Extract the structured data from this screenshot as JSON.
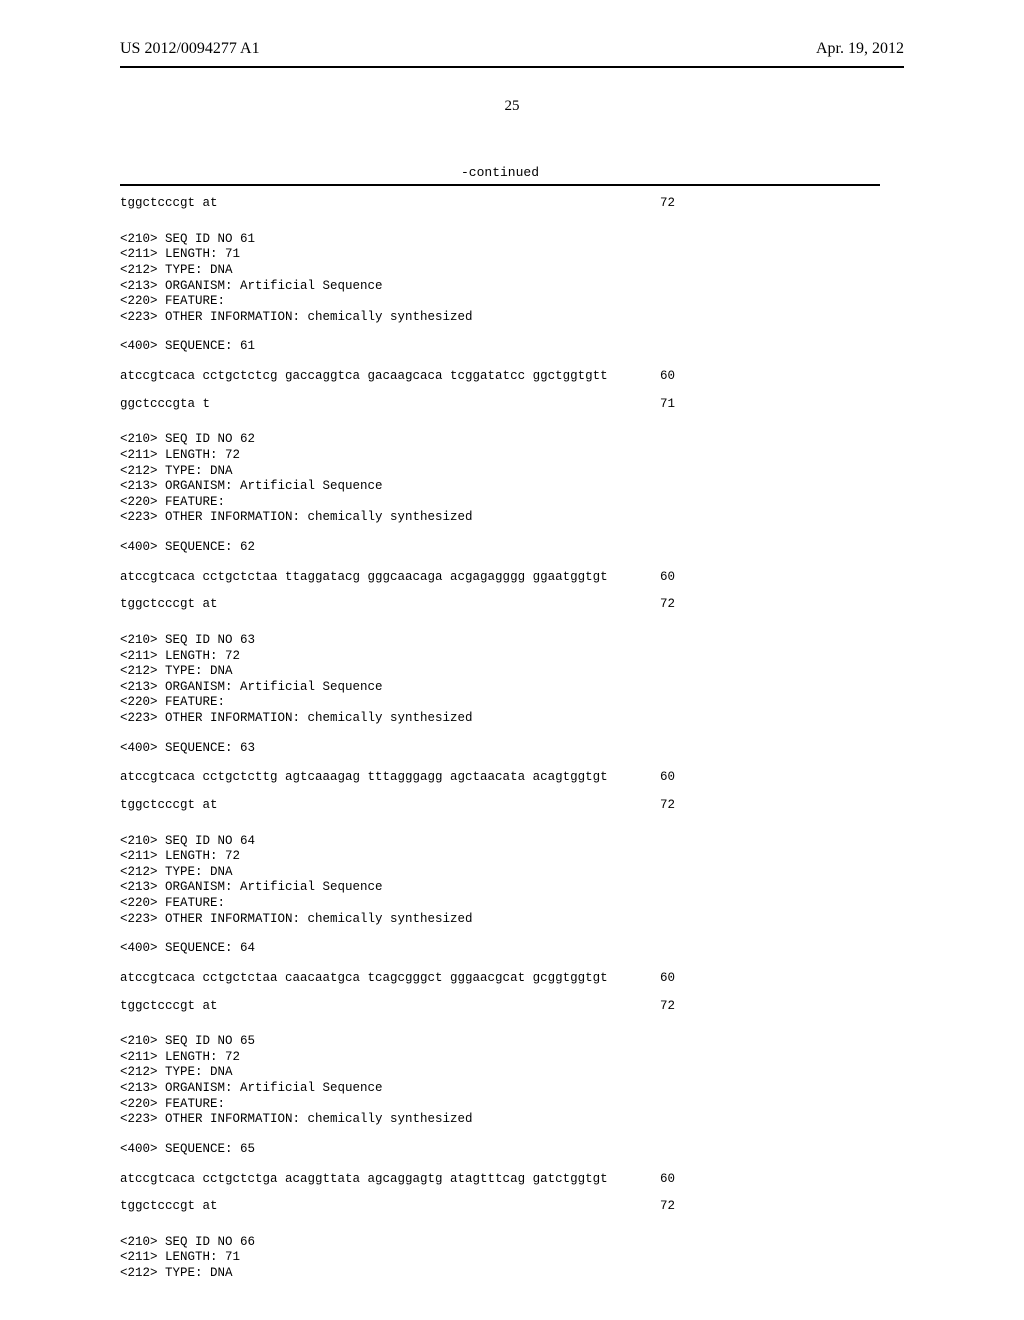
{
  "header": {
    "left": "US 2012/0094277 A1",
    "right": "Apr. 19, 2012"
  },
  "page_number": "25",
  "continued_label": "-continued",
  "sequences": [
    {
      "pre_rows": [
        {
          "seq": "tggctcccgt at",
          "num": "72"
        }
      ],
      "meta": [
        "<210> SEQ ID NO 61",
        "<211> LENGTH: 71",
        "<212> TYPE: DNA",
        "<213> ORGANISM: Artificial Sequence",
        "<220> FEATURE:",
        "<223> OTHER INFORMATION: chemically synthesized"
      ],
      "seq_header": "<400> SEQUENCE: 61",
      "rows": [
        {
          "seq": "atccgtcaca cctgctctcg gaccaggtca gacaagcaca tcggatatcc ggctggtgtt",
          "num": "60"
        },
        {
          "seq": "ggctcccgta t",
          "num": "71"
        }
      ]
    },
    {
      "meta": [
        "<210> SEQ ID NO 62",
        "<211> LENGTH: 72",
        "<212> TYPE: DNA",
        "<213> ORGANISM: Artificial Sequence",
        "<220> FEATURE:",
        "<223> OTHER INFORMATION: chemically synthesized"
      ],
      "seq_header": "<400> SEQUENCE: 62",
      "rows": [
        {
          "seq": "atccgtcaca cctgctctaa ttaggatacg gggcaacaga acgagagggg ggaatggtgt",
          "num": "60"
        },
        {
          "seq": "tggctcccgt at",
          "num": "72"
        }
      ]
    },
    {
      "meta": [
        "<210> SEQ ID NO 63",
        "<211> LENGTH: 72",
        "<212> TYPE: DNA",
        "<213> ORGANISM: Artificial Sequence",
        "<220> FEATURE:",
        "<223> OTHER INFORMATION: chemically synthesized"
      ],
      "seq_header": "<400> SEQUENCE: 63",
      "rows": [
        {
          "seq": "atccgtcaca cctgctcttg agtcaaagag tttagggagg agctaacata acagtggtgt",
          "num": "60"
        },
        {
          "seq": "tggctcccgt at",
          "num": "72"
        }
      ]
    },
    {
      "meta": [
        "<210> SEQ ID NO 64",
        "<211> LENGTH: 72",
        "<212> TYPE: DNA",
        "<213> ORGANISM: Artificial Sequence",
        "<220> FEATURE:",
        "<223> OTHER INFORMATION: chemically synthesized"
      ],
      "seq_header": "<400> SEQUENCE: 64",
      "rows": [
        {
          "seq": "atccgtcaca cctgctctaa caacaatgca tcagcgggct gggaacgcat gcggtggtgt",
          "num": "60"
        },
        {
          "seq": "tggctcccgt at",
          "num": "72"
        }
      ]
    },
    {
      "meta": [
        "<210> SEQ ID NO 65",
        "<211> LENGTH: 72",
        "<212> TYPE: DNA",
        "<213> ORGANISM: Artificial Sequence",
        "<220> FEATURE:",
        "<223> OTHER INFORMATION: chemically synthesized"
      ],
      "seq_header": "<400> SEQUENCE: 65",
      "rows": [
        {
          "seq": "atccgtcaca cctgctctga acaggttata agcaggagtg atagtttcag gatctggtgt",
          "num": "60"
        },
        {
          "seq": "tggctcccgt at",
          "num": "72"
        }
      ]
    },
    {
      "meta": [
        "<210> SEQ ID NO 66",
        "<211> LENGTH: 71",
        "<212> TYPE: DNA"
      ]
    }
  ]
}
